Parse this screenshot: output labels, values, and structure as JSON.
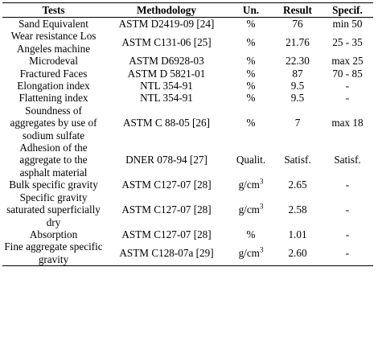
{
  "headers": {
    "tests": "Tests",
    "methodology": "Methodology",
    "unit": "Un.",
    "result": "Result",
    "specification": "Specif."
  },
  "rows": [
    {
      "test": "Sand Equivalent",
      "method": "ASTM D2419-09 [24]",
      "unit": "%",
      "unit_sup": "",
      "result": "76",
      "spec": "min 50"
    },
    {
      "test": "Wear resistance Los Angeles machine",
      "method": "ASTM C131-06 [25]",
      "unit": "%",
      "unit_sup": "",
      "result": "21.76",
      "spec": "25 - 35"
    },
    {
      "test": "Microdeval",
      "method": "ASTM D6928-03",
      "unit": "%",
      "unit_sup": "",
      "result": "22.30",
      "spec": "max 25"
    },
    {
      "test": "Fractured Faces",
      "method": "ASTM D 5821-01",
      "unit": "%",
      "unit_sup": "",
      "result": "87",
      "spec": "70 - 85"
    },
    {
      "test": "Elongation index",
      "method": "NTL 354-91",
      "unit": "%",
      "unit_sup": "",
      "result": "9.5",
      "spec": "-"
    },
    {
      "test": "Flattening index",
      "method": "NTL 354-91",
      "unit": "%",
      "unit_sup": "",
      "result": "9.5",
      "spec": "-"
    },
    {
      "test": "Soundness of aggregates by use of sodium sulfate",
      "method": "ASTM C 88-05 [26]",
      "unit": "%",
      "unit_sup": "",
      "result": "7",
      "spec": "max 18"
    },
    {
      "test": "Adhesion of the aggregate to the asphalt material",
      "method": "DNER 078-94 [27]",
      "unit": "Qualit.",
      "unit_sup": "",
      "result": "Satisf.",
      "spec": "Satisf."
    },
    {
      "test": "Bulk specific gravity",
      "method": "ASTM C127-07 [28]",
      "unit": "g/cm",
      "unit_sup": "3",
      "result": "2.65",
      "spec": "-"
    },
    {
      "test": "Specific gravity saturated superficially dry",
      "method": "ASTM C127-07 [28]",
      "unit": "g/cm",
      "unit_sup": "3",
      "result": "2.58",
      "spec": "-"
    },
    {
      "test": "Absorption",
      "method": "ASTM C127-07 [28]",
      "unit": "%",
      "unit_sup": "",
      "result": "1.01",
      "spec": "-"
    },
    {
      "test": "Fine aggregate specific gravity",
      "method": "ASTM C128-07a [29]",
      "unit": "g/cm",
      "unit_sup": "3",
      "result": "2.60",
      "spec": "-"
    }
  ]
}
